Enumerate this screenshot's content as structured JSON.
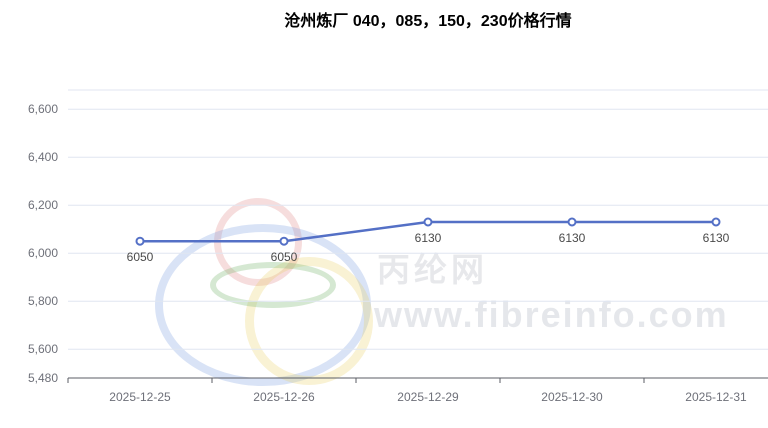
{
  "title": "沧州炼厂 040，085，150，230价格行情",
  "watermark": {
    "site_name": "丙纶网",
    "site_url": "www.fibreinfo.com"
  },
  "colors": {
    "line": "#5470C6",
    "marker_fill": "#ffffff",
    "grid": "#E0E6F1",
    "axis": "#5B5D66",
    "axis_label": "#6E7079",
    "data_label": "#4A4A4A"
  },
  "chart_data": {
    "type": "line",
    "title": "沧州炼厂 040，085，150，230价格行情",
    "categories": [
      "2025-12-25",
      "2025-12-26",
      "2025-12-29",
      "2025-12-30",
      "2025-12-31"
    ],
    "values": [
      6050,
      6050,
      6130,
      6130,
      6130
    ],
    "data_labels": [
      "6050",
      "6050",
      "6130",
      "6130",
      "6130"
    ],
    "ylim": [
      5480,
      6680
    ],
    "yticks": [
      5480,
      5600,
      5800,
      6000,
      6200,
      6400,
      6600
    ],
    "ytick_labels": [
      "5,480",
      "5,600",
      "5,800",
      "6,000",
      "6,200",
      "6,400",
      "6,600"
    ],
    "xlabel": "",
    "ylabel": "",
    "grid": true,
    "legend": false
  }
}
